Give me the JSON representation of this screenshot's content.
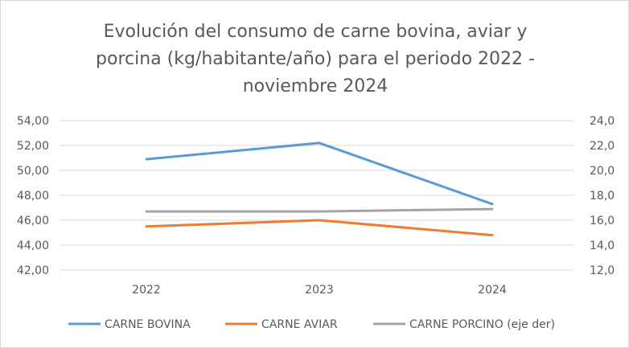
{
  "chart_data": {
    "type": "line",
    "title_lines": [
      "Evolución del consumo de carne bovina, aviar y",
      "porcina (kg/habitante/año) para el periodo 2022 -",
      "noviembre 2024"
    ],
    "categories": [
      "2022",
      "2023",
      "2024"
    ],
    "y_left": {
      "min": 42,
      "max": 54,
      "step": 2,
      "ticks": [
        "42,00",
        "44,00",
        "46,00",
        "48,00",
        "50,00",
        "52,00",
        "54,00"
      ]
    },
    "y_right": {
      "min": 12,
      "max": 24,
      "step": 2,
      "ticks": [
        "12,0",
        "14,0",
        "16,0",
        "18,0",
        "20,0",
        "22,0",
        "24,0"
      ]
    },
    "grid": true,
    "legend_position": "bottom",
    "series": [
      {
        "name": "CARNE BOVINA",
        "axis": "left",
        "color": "#5b9bd5",
        "values": [
          50.9,
          52.2,
          47.3
        ]
      },
      {
        "name": "CARNE AVIAR",
        "axis": "left",
        "color": "#ed7d31",
        "values": [
          45.5,
          46.0,
          44.8
        ]
      },
      {
        "name": "CARNE PORCINO (eje der)",
        "axis": "right",
        "color": "#a5a5a5",
        "values": [
          16.7,
          16.7,
          16.9
        ]
      }
    ]
  }
}
